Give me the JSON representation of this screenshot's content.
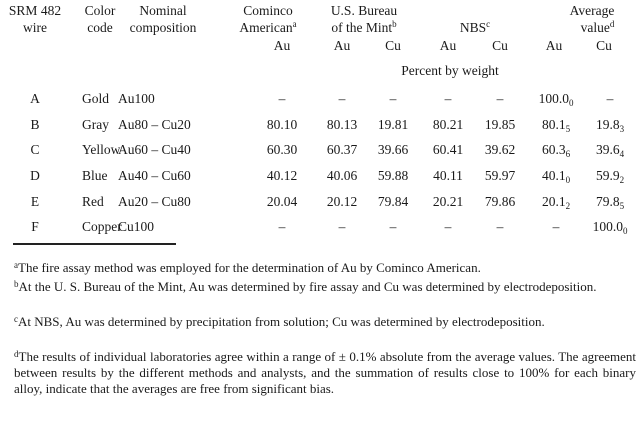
{
  "headers": {
    "wire": [
      "SRM 482",
      "wire"
    ],
    "color": [
      "Color",
      "code"
    ],
    "nominal": [
      "Nominal",
      "composition"
    ],
    "cominco": [
      "Cominco",
      "American"
    ],
    "cominco_note": "a",
    "mint": [
      "U.S. Bureau",
      "of the Mint"
    ],
    "mint_note": "b",
    "nbs": "NBS",
    "nbs_note": "c",
    "average": [
      "Average",
      "value"
    ],
    "average_note": "d",
    "sub": [
      "Au",
      "Au",
      "Cu",
      "Au",
      "Cu",
      "Au",
      "Cu"
    ],
    "units": "Percent by weight"
  },
  "rows": [
    {
      "wire": "A",
      "color": "Gold",
      "nominal": "Au100",
      "cominco": "–",
      "mint_au": "–",
      "mint_cu": "–",
      "nbs_au": "–",
      "nbs_cu": "–",
      "avg_au": {
        "v": "100.0",
        "s": "0"
      },
      "avg_cu": {
        "v": "–",
        "s": ""
      }
    },
    {
      "wire": "B",
      "color": "Gray",
      "nominal": "Au80 – Cu20",
      "cominco": "80.10",
      "mint_au": "80.13",
      "mint_cu": "19.81",
      "nbs_au": "80.21",
      "nbs_cu": "19.85",
      "avg_au": {
        "v": "80.1",
        "s": "5"
      },
      "avg_cu": {
        "v": "19.8",
        "s": "3"
      }
    },
    {
      "wire": "C",
      "color": "Yellow",
      "nominal": "Au60 – Cu40",
      "cominco": "60.30",
      "mint_au": "60.37",
      "mint_cu": "39.66",
      "nbs_au": "60.41",
      "nbs_cu": "39.62",
      "avg_au": {
        "v": "60.3",
        "s": "6"
      },
      "avg_cu": {
        "v": "39.6",
        "s": "4"
      }
    },
    {
      "wire": "D",
      "color": "Blue",
      "nominal": "Au40 – Cu60",
      "cominco": "40.12",
      "mint_au": "40.06",
      "mint_cu": "59.88",
      "nbs_au": "40.11",
      "nbs_cu": "59.97",
      "avg_au": {
        "v": "40.1",
        "s": "0"
      },
      "avg_cu": {
        "v": "59.9",
        "s": "2"
      }
    },
    {
      "wire": "E",
      "color": "Red",
      "nominal": "Au20 – Cu80",
      "cominco": "20.04",
      "mint_au": "20.12",
      "mint_cu": "79.84",
      "nbs_au": "20.21",
      "nbs_cu": "79.86",
      "avg_au": {
        "v": "20.1",
        "s": "2"
      },
      "avg_cu": {
        "v": "79.8",
        "s": "5"
      }
    },
    {
      "wire": "F",
      "color": "Copper",
      "nominal": "Cu100",
      "cominco": "–",
      "mint_au": "–",
      "mint_cu": "–",
      "nbs_au": "–",
      "nbs_cu": "–",
      "avg_au": {
        "v": "–",
        "s": ""
      },
      "avg_cu": {
        "v": "100.0",
        "s": "0"
      }
    }
  ],
  "footnotes": [
    {
      "mark": "a",
      "text": "The fire assay method was employed for the determination of Au by Cominco American."
    },
    {
      "mark": "b",
      "text": "At the U. S. Bureau of the Mint, Au was determined by fire assay and Cu was determined by electrodeposition."
    },
    {
      "mark": "c",
      "text": "At NBS, Au was determined by precipitation from solution; Cu was determined by electrodeposition."
    },
    {
      "mark": "d",
      "text": "The results of individual laboratories agree within a range of ± 0.1% absolute from the average values. The agreement between results by the different methods and analysts, and the summation of results close to 100% for each binary alloy, indicate that the averages are free from significant bias."
    }
  ]
}
